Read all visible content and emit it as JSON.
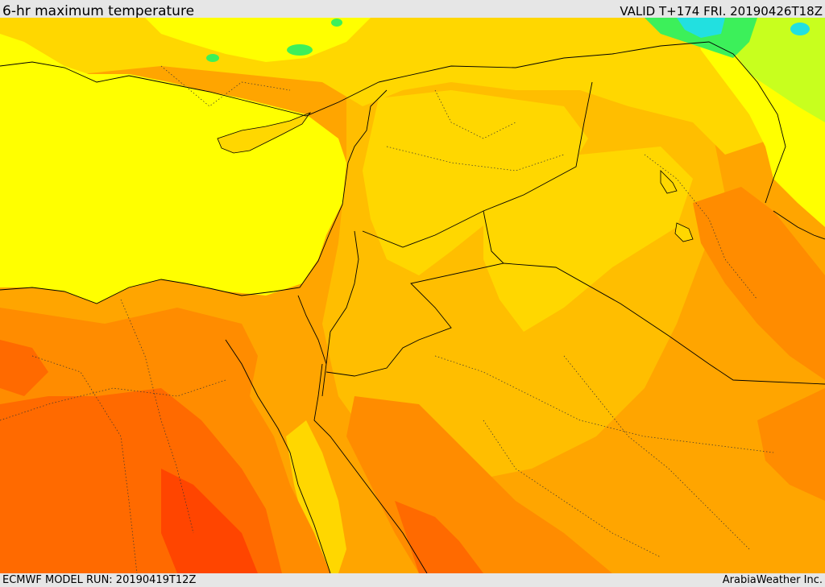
{
  "header": {
    "title": "6-hr maximum temperature",
    "valid": "VALID T+174 FRI. 20190426T18Z"
  },
  "footer": {
    "model_run": "ECMWF MODEL RUN: 20190419T12Z",
    "credit": "ArabiaWeather Inc."
  },
  "map": {
    "field": "temperature",
    "palette": {
      "cool_cyan": "#22e0e0",
      "green": "#3cf05a",
      "yellow_green": "#c8ff1e",
      "yellow": "#ffff00",
      "gold": "#ffd700",
      "orange_light": "#ffbe00",
      "orange": "#ffa500",
      "orange_dark": "#ff8c00",
      "red_orange": "#ff6a00",
      "red": "#ff4500"
    },
    "features": [
      "coastlines",
      "country-borders",
      "province-borders"
    ]
  }
}
